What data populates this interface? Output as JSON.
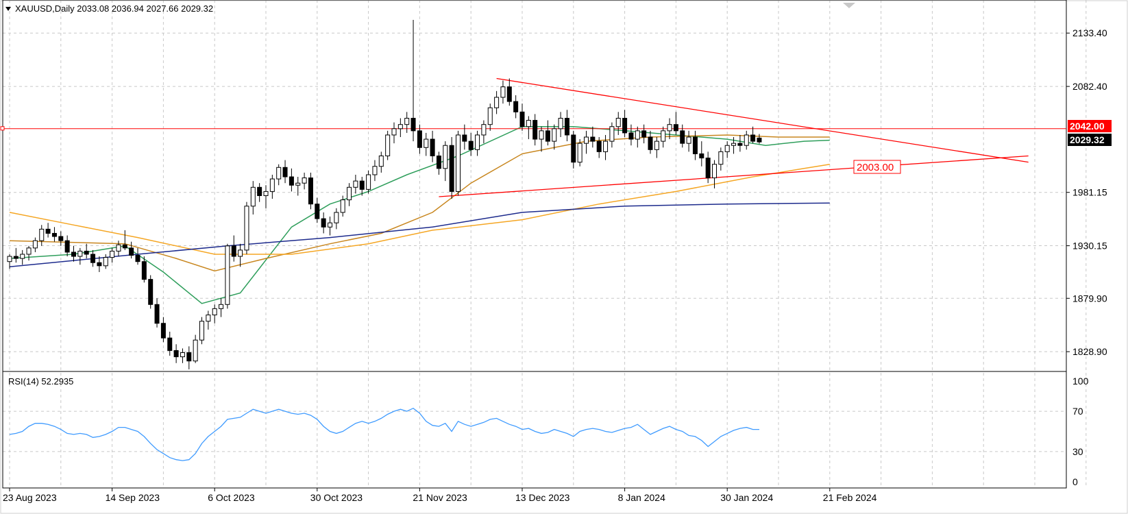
{
  "header": {
    "symbol_line": "XAUUSD,Daily  2033.08 2036.94 2027.66 2029.32"
  },
  "price_axis": {
    "ticks": [
      {
        "value": 2133.4,
        "label": "2133.40"
      },
      {
        "value": 2082.4,
        "label": "2082.40"
      },
      {
        "value": 1981.15,
        "label": "1981.15"
      },
      {
        "value": 1930.15,
        "label": "1930.15"
      },
      {
        "value": 1879.9,
        "label": "1879.90"
      },
      {
        "value": 1828.9,
        "label": "1828.90"
      }
    ],
    "resistance_label": "2042.00",
    "current_label": "2029.32",
    "support_label": "2003.00"
  },
  "rsi": {
    "title": "RSI(14) 52.2935",
    "ticks": [
      {
        "value": 100,
        "label": "100"
      },
      {
        "value": 70,
        "label": "70"
      },
      {
        "value": 30,
        "label": "30"
      },
      {
        "value": 0,
        "label": "0"
      }
    ]
  },
  "time_axis": {
    "labels": [
      {
        "index": 0,
        "label": "23 Aug 2023"
      },
      {
        "index": 16,
        "label": "14 Sep 2023"
      },
      {
        "index": 32,
        "label": "6 Oct 2023"
      },
      {
        "index": 48,
        "label": "30 Oct 2023"
      },
      {
        "index": 64,
        "label": "21 Nov 2023"
      },
      {
        "index": 80,
        "label": "13 Dec 2023"
      },
      {
        "index": 96,
        "label": "8 Jan 2024"
      },
      {
        "index": 112,
        "label": "30 Jan 2024"
      },
      {
        "index": 128,
        "label": "21 Feb 2024"
      }
    ]
  },
  "colors": {
    "candle": "#000000",
    "resistance": "#ff0000",
    "trendline": "#ff0000",
    "ma_green": "#2e9e5b",
    "ma_brown": "#c8861e",
    "ma_orange": "#f5a623",
    "ma_navy": "#1c2a8c",
    "rsi_line": "#3f9bff",
    "grid": "#c8c8c8"
  },
  "chart_data": {
    "type": "candlestick",
    "symbol": "XAUUSD",
    "timeframe": "Daily",
    "ylim": [
      1810,
      2165
    ],
    "hline": 2042.0,
    "support_level": 2003.0,
    "ohlc": [
      [
        1915,
        1922,
        1908,
        1920
      ],
      [
        1920,
        1928,
        1914,
        1918
      ],
      [
        1918,
        1926,
        1912,
        1922
      ],
      [
        1922,
        1930,
        1916,
        1928
      ],
      [
        1928,
        1938,
        1924,
        1935
      ],
      [
        1935,
        1950,
        1930,
        1946
      ],
      [
        1946,
        1952,
        1938,
        1942
      ],
      [
        1942,
        1948,
        1934,
        1939
      ],
      [
        1939,
        1944,
        1930,
        1935
      ],
      [
        1935,
        1940,
        1920,
        1924
      ],
      [
        1924,
        1930,
        1915,
        1920
      ],
      [
        1920,
        1928,
        1912,
        1925
      ],
      [
        1925,
        1932,
        1918,
        1922
      ],
      [
        1922,
        1926,
        1910,
        1914
      ],
      [
        1914,
        1920,
        1905,
        1911
      ],
      [
        1911,
        1922,
        1908,
        1919
      ],
      [
        1919,
        1928,
        1914,
        1925
      ],
      [
        1925,
        1935,
        1920,
        1931
      ],
      [
        1931,
        1945,
        1926,
        1928
      ],
      [
        1928,
        1934,
        1918,
        1921
      ],
      [
        1921,
        1928,
        1912,
        1915
      ],
      [
        1915,
        1920,
        1895,
        1898
      ],
      [
        1898,
        1902,
        1870,
        1874
      ],
      [
        1874,
        1880,
        1852,
        1856
      ],
      [
        1856,
        1862,
        1838,
        1842
      ],
      [
        1842,
        1848,
        1825,
        1830
      ],
      [
        1830,
        1836,
        1818,
        1824
      ],
      [
        1824,
        1832,
        1818,
        1828
      ],
      [
        1828,
        1834,
        1812,
        1820
      ],
      [
        1820,
        1845,
        1818,
        1840
      ],
      [
        1840,
        1862,
        1836,
        1858
      ],
      [
        1858,
        1868,
        1850,
        1864
      ],
      [
        1864,
        1874,
        1856,
        1870
      ],
      [
        1870,
        1880,
        1862,
        1874
      ],
      [
        1874,
        1932,
        1870,
        1930
      ],
      [
        1930,
        1940,
        1915,
        1920
      ],
      [
        1920,
        1932,
        1910,
        1926
      ],
      [
        1926,
        1972,
        1922,
        1968
      ],
      [
        1968,
        1992,
        1960,
        1986
      ],
      [
        1986,
        1990,
        1972,
        1978
      ],
      [
        1978,
        1988,
        1966,
        1982
      ],
      [
        1982,
        1998,
        1975,
        1994
      ],
      [
        1994,
        2008,
        1988,
        2005
      ],
      [
        2005,
        2012,
        1990,
        1996
      ],
      [
        1996,
        2004,
        1982,
        1988
      ],
      [
        1988,
        1996,
        1978,
        1990
      ],
      [
        1990,
        2000,
        1984,
        1995
      ],
      [
        1995,
        2000,
        1965,
        1970
      ],
      [
        1970,
        1976,
        1952,
        1956
      ],
      [
        1956,
        1962,
        1942,
        1948
      ],
      [
        1948,
        1958,
        1940,
        1952
      ],
      [
        1952,
        1966,
        1946,
        1962
      ],
      [
        1962,
        1978,
        1958,
        1974
      ],
      [
        1974,
        1990,
        1968,
        1986
      ],
      [
        1986,
        1998,
        1980,
        1992
      ],
      [
        1992,
        1996,
        1978,
        1984
      ],
      [
        1984,
        2002,
        1980,
        1998
      ],
      [
        1998,
        2012,
        1992,
        2006
      ],
      [
        2006,
        2020,
        2000,
        2016
      ],
      [
        2016,
        2040,
        2012,
        2036
      ],
      [
        2036,
        2048,
        2028,
        2042
      ],
      [
        2042,
        2052,
        2034,
        2046
      ],
      [
        2046,
        2058,
        2038,
        2052
      ],
      [
        2052,
        2146,
        2030,
        2040
      ],
      [
        2040,
        2046,
        2018,
        2024
      ],
      [
        2024,
        2038,
        2016,
        2032
      ],
      [
        2032,
        2040,
        2010,
        2016
      ],
      [
        2016,
        2020,
        1998,
        2004
      ],
      [
        2004,
        2030,
        1992,
        2026
      ],
      [
        2026,
        2034,
        1975,
        1982
      ],
      [
        1982,
        2040,
        1978,
        2036
      ],
      [
        2036,
        2046,
        2022,
        2030
      ],
      [
        2030,
        2038,
        2016,
        2022
      ],
      [
        2022,
        2040,
        2016,
        2036
      ],
      [
        2036,
        2050,
        2028,
        2046
      ],
      [
        2046,
        2066,
        2040,
        2062
      ],
      [
        2062,
        2078,
        2056,
        2072
      ],
      [
        2072,
        2088,
        2066,
        2082
      ],
      [
        2082,
        2090,
        2064,
        2068
      ],
      [
        2068,
        2074,
        2052,
        2058
      ],
      [
        2058,
        2066,
        2040,
        2044
      ],
      [
        2044,
        2054,
        2032,
        2050
      ],
      [
        2050,
        2056,
        2026,
        2032
      ],
      [
        2032,
        2044,
        2020,
        2040
      ],
      [
        2040,
        2050,
        2026,
        2030
      ],
      [
        2030,
        2046,
        2022,
        2042
      ],
      [
        2042,
        2058,
        2034,
        2052
      ],
      [
        2052,
        2060,
        2030,
        2036
      ],
      [
        2036,
        2040,
        2004,
        2010
      ],
      [
        2010,
        2032,
        2006,
        2028
      ],
      [
        2028,
        2040,
        2018,
        2034
      ],
      [
        2034,
        2044,
        2024,
        2030
      ],
      [
        2030,
        2034,
        2014,
        2020
      ],
      [
        2020,
        2036,
        2012,
        2030
      ],
      [
        2030,
        2048,
        2024,
        2044
      ],
      [
        2044,
        2058,
        2036,
        2052
      ],
      [
        2052,
        2060,
        2034,
        2038
      ],
      [
        2038,
        2046,
        2026,
        2032
      ],
      [
        2032,
        2044,
        2024,
        2040
      ],
      [
        2040,
        2046,
        2028,
        2034
      ],
      [
        2034,
        2040,
        2018,
        2022
      ],
      [
        2022,
        2034,
        2014,
        2030
      ],
      [
        2030,
        2044,
        2024,
        2040
      ],
      [
        2040,
        2052,
        2032,
        2046
      ],
      [
        2046,
        2058,
        2036,
        2040
      ],
      [
        2040,
        2046,
        2024,
        2028
      ],
      [
        2028,
        2040,
        2020,
        2034
      ],
      [
        2034,
        2040,
        2012,
        2018
      ],
      [
        2018,
        2030,
        2006,
        2014
      ],
      [
        2014,
        2020,
        1990,
        1995
      ],
      [
        1995,
        2012,
        1985,
        2008
      ],
      [
        2008,
        2024,
        2002,
        2020
      ],
      [
        2020,
        2030,
        2014,
        2026
      ],
      [
        2026,
        2034,
        2018,
        2028
      ],
      [
        2028,
        2036,
        2020,
        2026
      ],
      [
        2026,
        2040,
        2022,
        2036
      ],
      [
        2036,
        2044,
        2028,
        2030
      ],
      [
        2033.08,
        2036.94,
        2027.66,
        2029.32
      ]
    ],
    "moving_averages": [
      {
        "color": "#2e9e5b",
        "points": [
          [
            0,
            1918
          ],
          [
            10,
            1922
          ],
          [
            18,
            1930
          ],
          [
            24,
            1905
          ],
          [
            30,
            1875
          ],
          [
            36,
            1885
          ],
          [
            44,
            1948
          ],
          [
            50,
            1970
          ],
          [
            56,
            1982
          ],
          [
            62,
            1998
          ],
          [
            70,
            2016
          ],
          [
            80,
            2044
          ],
          [
            88,
            2044
          ],
          [
            96,
            2040
          ],
          [
            104,
            2036
          ],
          [
            112,
            2032
          ],
          [
            118,
            2026
          ],
          [
            124,
            2030
          ],
          [
            128,
            2031
          ]
        ]
      },
      {
        "color": "#c8861e",
        "points": [
          [
            0,
            1935
          ],
          [
            18,
            1932
          ],
          [
            26,
            1918
          ],
          [
            32,
            1906
          ],
          [
            40,
            1918
          ],
          [
            50,
            1932
          ],
          [
            58,
            1942
          ],
          [
            66,
            1962
          ],
          [
            72,
            1990
          ],
          [
            80,
            2018
          ],
          [
            90,
            2030
          ],
          [
            100,
            2034
          ],
          [
            112,
            2036
          ],
          [
            120,
            2034
          ],
          [
            128,
            2034
          ]
        ]
      },
      {
        "color": "#f5a623",
        "points": [
          [
            0,
            1962
          ],
          [
            10,
            1950
          ],
          [
            20,
            1938
          ],
          [
            32,
            1922
          ],
          [
            44,
            1922
          ],
          [
            56,
            1932
          ],
          [
            66,
            1945
          ],
          [
            80,
            1955
          ],
          [
            92,
            1970
          ],
          [
            104,
            1982
          ],
          [
            116,
            1996
          ],
          [
            124,
            2004
          ],
          [
            128,
            2008
          ]
        ]
      },
      {
        "color": "#1c2a8c",
        "points": [
          [
            0,
            1910
          ],
          [
            20,
            1922
          ],
          [
            34,
            1930
          ],
          [
            50,
            1938
          ],
          [
            66,
            1948
          ],
          [
            80,
            1962
          ],
          [
            96,
            1968
          ],
          [
            112,
            1970
          ],
          [
            128,
            1971
          ]
        ]
      }
    ],
    "resistance_trendline": [
      [
        76,
        2090
      ],
      [
        159,
        2010
      ]
    ],
    "support_trendline": [
      [
        67,
        1977
      ],
      [
        159,
        2016
      ]
    ],
    "rsi": {
      "name": "RSI(14)",
      "ylim": [
        0,
        100
      ],
      "values": [
        47,
        48,
        50,
        55,
        58,
        58,
        57,
        55,
        52,
        48,
        47,
        48,
        47,
        44,
        45,
        47,
        50,
        54,
        54,
        52,
        50,
        45,
        38,
        32,
        28,
        24,
        22,
        21,
        22,
        28,
        38,
        45,
        50,
        55,
        62,
        63,
        64,
        68,
        72,
        70,
        68,
        70,
        72,
        70,
        68,
        67,
        68,
        66,
        62,
        55,
        50,
        48,
        50,
        54,
        58,
        60,
        58,
        60,
        63,
        67,
        70,
        72,
        70,
        73,
        68,
        60,
        56,
        55,
        58,
        50,
        60,
        57,
        55,
        57,
        59,
        62,
        63,
        60,
        57,
        55,
        52,
        53,
        50,
        48,
        49,
        52,
        50,
        48,
        45,
        50,
        52,
        53,
        52,
        50,
        49,
        51,
        53,
        54,
        57,
        52,
        47,
        50,
        53,
        55,
        52,
        50,
        46,
        45,
        41,
        35,
        40,
        45,
        48,
        51,
        53,
        54,
        52,
        52
      ]
    }
  }
}
